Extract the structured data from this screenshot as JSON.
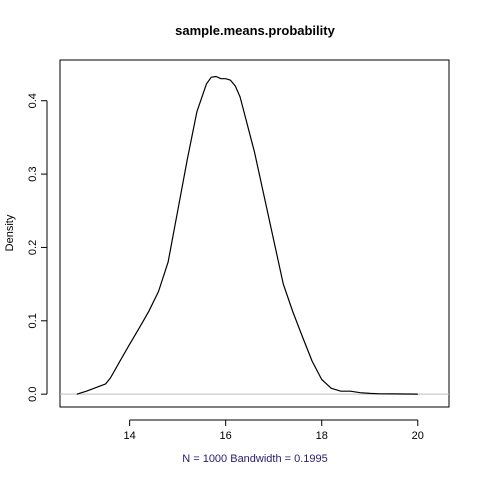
{
  "chart_data": {
    "type": "line",
    "title": "sample.means.probability",
    "xlabel": "N = 1000   Bandwidth = 0.1995",
    "ylabel": "Density",
    "xlim": [
      12.55,
      20.65
    ],
    "ylim": [
      -0.0175,
      0.4555
    ],
    "x_ticks": [
      14,
      16,
      18,
      20
    ],
    "x_tick_labels": [
      "14",
      "16",
      "18",
      "20"
    ],
    "y_ticks": [
      0.0,
      0.1,
      0.2,
      0.3,
      0.4
    ],
    "y_tick_labels": [
      "0.0",
      "0.1",
      "0.2",
      "0.3",
      "0.4"
    ],
    "baseline": 0.0,
    "baseline_color": "#bebebe",
    "line_color": "#000000",
    "grid": false,
    "series": [
      {
        "x": [
          12.9,
          13.1,
          13.3,
          13.5,
          13.6,
          13.8,
          14.0,
          14.2,
          14.4,
          14.6,
          14.8,
          15.0,
          15.2,
          15.4,
          15.6,
          15.7,
          15.8,
          15.9,
          16.0,
          16.1,
          16.2,
          16.3,
          16.4,
          16.6,
          16.8,
          17.0,
          17.2,
          17.4,
          17.6,
          17.8,
          18.0,
          18.2,
          18.4,
          18.6,
          18.8,
          19.0,
          19.2,
          19.5,
          20.0
        ],
        "y": [
          0.0,
          0.004,
          0.009,
          0.014,
          0.022,
          0.045,
          0.068,
          0.09,
          0.113,
          0.14,
          0.18,
          0.25,
          0.32,
          0.385,
          0.423,
          0.432,
          0.433,
          0.43,
          0.43,
          0.428,
          0.42,
          0.405,
          0.38,
          0.33,
          0.27,
          0.21,
          0.15,
          0.112,
          0.078,
          0.045,
          0.02,
          0.008,
          0.004,
          0.004,
          0.002,
          0.001,
          0.0005,
          0.0003,
          0.0001
        ]
      }
    ]
  }
}
